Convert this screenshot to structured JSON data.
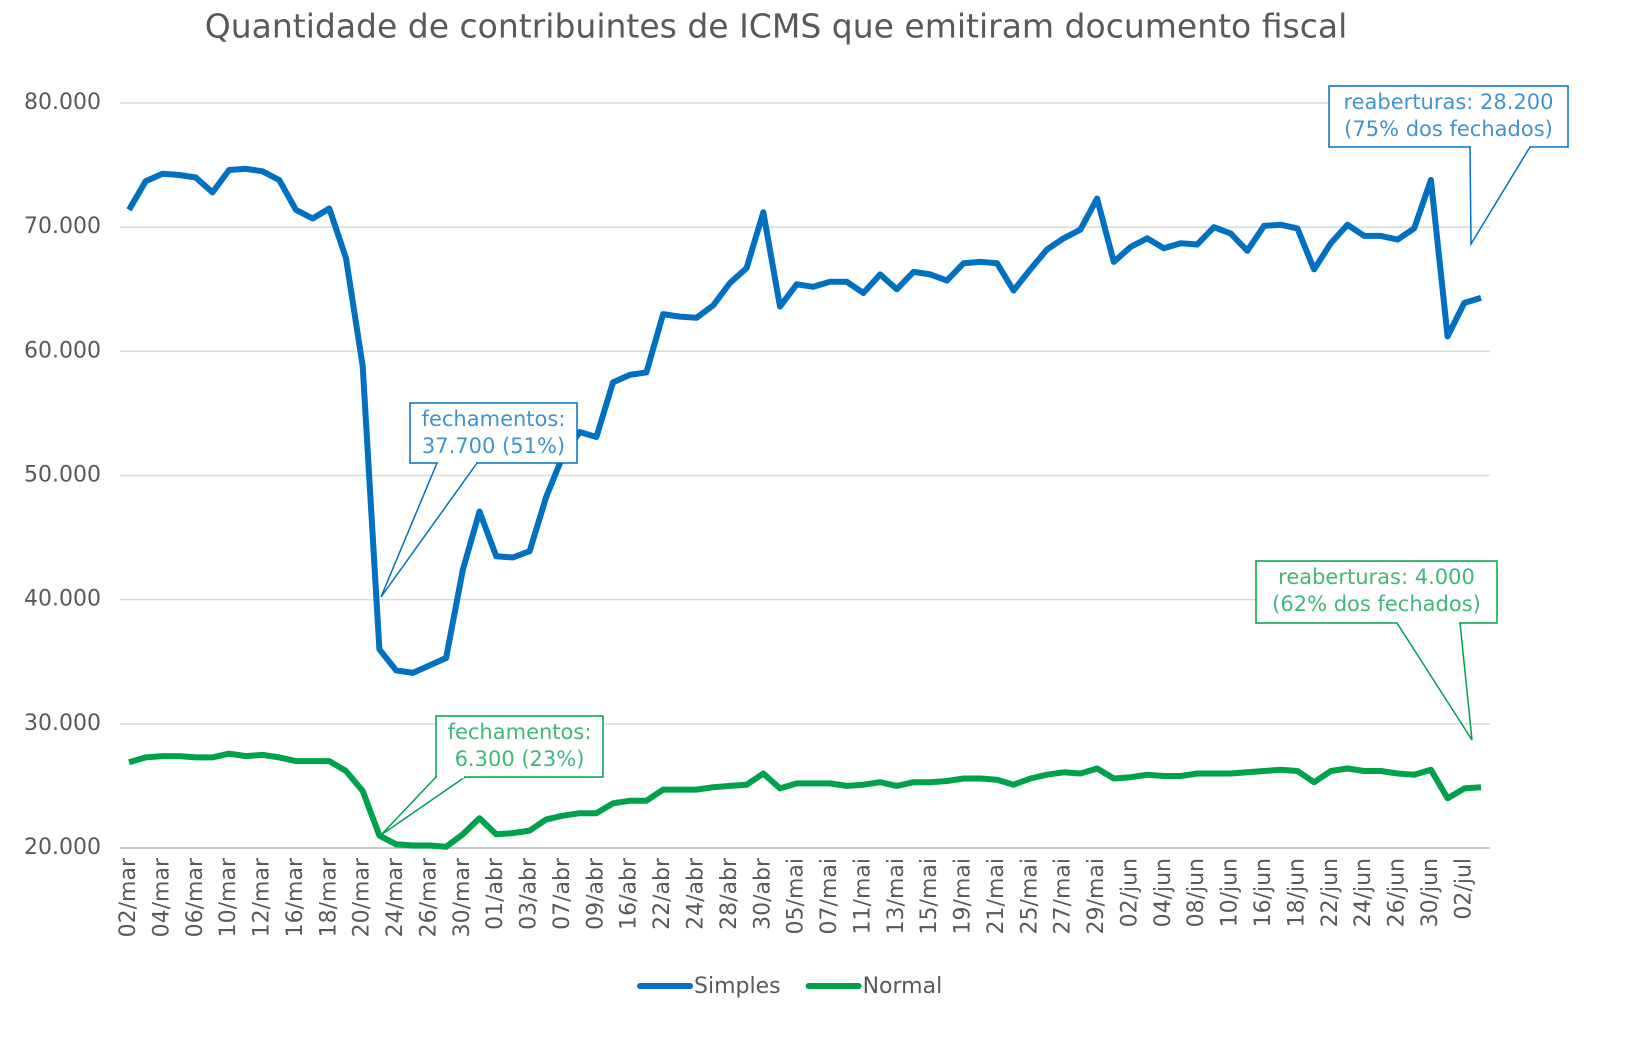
{
  "chart_data": {
    "type": "line",
    "title": "Quantidade de contribuintes de ICMS que emitiram documento fiscal",
    "categories": [
      "02/mar",
      null,
      "04/mar",
      null,
      "06/mar",
      null,
      "10/mar",
      null,
      "12/mar",
      null,
      "16/mar",
      null,
      "18/mar",
      null,
      "20/mar",
      null,
      "24/mar",
      null,
      "26/mar",
      null,
      "30/mar",
      null,
      "01/abr",
      null,
      "03/abr",
      null,
      "07/abr",
      null,
      "09/abr",
      null,
      "16/abr",
      null,
      "22/abr",
      null,
      "24/abr",
      null,
      "28/abr",
      null,
      "30/abr",
      null,
      "05/mai",
      null,
      "07/mai",
      null,
      "11/mai",
      null,
      "13/mai",
      null,
      "15/mai",
      null,
      "19/mai",
      null,
      "21/mai",
      null,
      "25/mai",
      null,
      "27/mai",
      null,
      "29/mai",
      null,
      "02/jun",
      null,
      "04/jun",
      null,
      "08/jun",
      null,
      "10/jun",
      null,
      "16/jun",
      null,
      "18/jun",
      null,
      "22/jun",
      null,
      "24/jun",
      null,
      "26/jun",
      null,
      "30/jun",
      null,
      "02/jul",
      null
    ],
    "series": [
      {
        "name": "Simples",
        "color": "#0070c0",
        "values": [
          71400,
          73700,
          74300,
          74200,
          74000,
          72800,
          74600,
          74700,
          74500,
          73800,
          71400,
          70700,
          71500,
          67500,
          58800,
          36000,
          34300,
          34100,
          34700,
          35300,
          42400,
          47100,
          43500,
          43400,
          43900,
          48300,
          51600,
          53500,
          53100,
          57500,
          58100,
          58300,
          63000,
          62800,
          62700,
          63700,
          65500,
          66700,
          71200,
          63600,
          65400,
          65200,
          65600,
          65600,
          64700,
          66200,
          65000,
          66400,
          66200,
          65700,
          67100,
          67200,
          67100,
          64900,
          66600,
          68200,
          69100,
          69800,
          72300,
          67200,
          68400,
          69100,
          68300,
          68700,
          68600,
          70000,
          69500,
          68100,
          70100,
          70200,
          69900,
          66600,
          68700,
          70200,
          69300,
          69300,
          69000,
          69900,
          73800,
          61200,
          63900,
          64300
        ]
      },
      {
        "name": "Normal",
        "color": "#00a14b",
        "values": [
          26900,
          27300,
          27400,
          27400,
          27300,
          27300,
          27600,
          27400,
          27500,
          27300,
          27000,
          27000,
          27000,
          26200,
          24600,
          21000,
          20300,
          20200,
          20200,
          20100,
          21100,
          22400,
          21100,
          21200,
          21400,
          22300,
          22600,
          22800,
          22800,
          23600,
          23800,
          23800,
          24700,
          24700,
          24700,
          24900,
          25000,
          25100,
          26000,
          24800,
          25200,
          25200,
          25200,
          25000,
          25100,
          25300,
          25000,
          25300,
          25300,
          25400,
          25600,
          25600,
          25500,
          25100,
          25600,
          25900,
          26100,
          26000,
          26400,
          25600,
          25700,
          25900,
          25800,
          25800,
          26000,
          26000,
          26000,
          26100,
          26200,
          26300,
          26200,
          25300,
          26200,
          26400,
          26200,
          26200,
          26000,
          25900,
          26300,
          24000,
          24800,
          24900
        ]
      }
    ],
    "ylim": [
      20000,
      80000
    ],
    "yticks": [
      {
        "value": 20000,
        "label": "20.000"
      },
      {
        "value": 30000,
        "label": "30.000"
      },
      {
        "value": 40000,
        "label": "40.000"
      },
      {
        "value": 50000,
        "label": "50.000"
      },
      {
        "value": 60000,
        "label": "60.000"
      },
      {
        "value": 70000,
        "label": "70.000"
      },
      {
        "value": 80000,
        "label": "80.000"
      }
    ],
    "grid": true,
    "legend": "bottom",
    "annotations": [
      {
        "lines": [
          "fechamentos:",
          "37.700 (51%)"
        ],
        "color": "#0070c0"
      },
      {
        "lines": [
          "reaberturas: 28.200",
          "(75% dos fechados)"
        ],
        "color": "#0070c0"
      },
      {
        "lines": [
          "fechamentos:",
          "6.300 (23%)"
        ],
        "color": "#00a14b"
      },
      {
        "lines": [
          "reaberturas: 4.000",
          "(62% dos fechados)"
        ],
        "color": "#00a14b"
      }
    ]
  }
}
